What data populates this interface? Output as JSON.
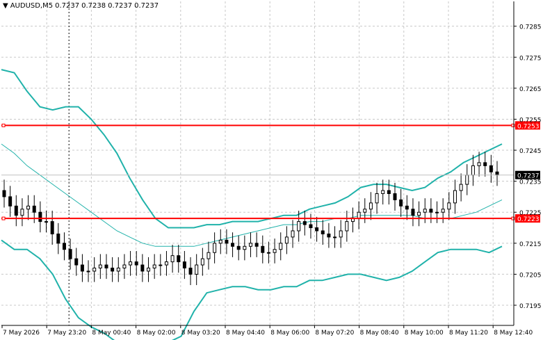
{
  "header": {
    "symbol": "AUDUSD,M5",
    "open": "0.7237",
    "high": "0.7238",
    "low": "0.7237",
    "close": "0.7237"
  },
  "colors": {
    "background": "#ffffff",
    "grid": "#c8c8c8",
    "band": "#20b2aa",
    "ma_line": "#20b2aa",
    "level_line": "#ff0000",
    "candle": "#000000",
    "price_line": "#c0c0c0"
  },
  "chart_data": {
    "type": "candlestick",
    "symbol": "AUDUSD",
    "timeframe": "M5",
    "grid": true,
    "ylim": [
      0.71885,
      0.7293
    ],
    "y_ticks": [
      "0.7285",
      "0.7275",
      "0.7265",
      "0.7255",
      "0.7245",
      "0.7235",
      "0.7225",
      "0.7215",
      "0.7205",
      "0.7195"
    ],
    "x_ticks": [
      "7 May 2026",
      "7 May 23:20",
      "8 May 00:40",
      "8 May 02:00",
      "8 May 03:20",
      "8 May 04:40",
      "8 May 06:00",
      "8 May 07:20",
      "8 May 08:40",
      "8 May 10:00",
      "8 May 11:20",
      "8 May 12:40"
    ],
    "last_price": "0.7237",
    "levels": [
      {
        "value": 0.7253,
        "label": "0.7253"
      },
      {
        "value": 0.7223,
        "label": "0.7223"
      }
    ],
    "closes": [
      0.723,
      0.7227,
      0.7224,
      0.7226,
      0.7227,
      0.7225,
      0.7222,
      0.7222,
      0.7218,
      0.7215,
      0.7213,
      0.721,
      0.7208,
      0.7206,
      0.7206,
      0.7207,
      0.7208,
      0.7207,
      0.7206,
      0.7207,
      0.7208,
      0.7209,
      0.7208,
      0.7206,
      0.7207,
      0.7208,
      0.7208,
      0.7209,
      0.7211,
      0.7209,
      0.7207,
      0.7205,
      0.7208,
      0.721,
      0.7212,
      0.7215,
      0.7216,
      0.7215,
      0.7214,
      0.7213,
      0.7214,
      0.7215,
      0.7214,
      0.7212,
      0.7212,
      0.7213,
      0.7215,
      0.7217,
      0.7219,
      0.7222,
      0.7221,
      0.722,
      0.7219,
      0.7218,
      0.7217,
      0.7217,
      0.7219,
      0.7222,
      0.7223,
      0.7225,
      0.7226,
      0.7228,
      0.7231,
      0.7232,
      0.7231,
      0.7229,
      0.7227,
      0.7226,
      0.7224,
      0.7225,
      0.7226,
      0.7225,
      0.7225,
      0.7226,
      0.7228,
      0.7232,
      0.7234,
      0.7237,
      0.724,
      0.7241,
      0.724,
      0.7238,
      0.7237
    ],
    "bollinger": {
      "period": 20,
      "upper": [
        0.7271,
        0.727,
        0.7264,
        0.7259,
        0.7258,
        0.7259,
        0.7259,
        0.7255,
        0.725,
        0.7244,
        0.7236,
        0.7229,
        0.7223,
        0.722,
        0.722,
        0.722,
        0.7221,
        0.7221,
        0.7222,
        0.7222,
        0.7222,
        0.7223,
        0.7224,
        0.7224,
        0.7226,
        0.7227,
        0.7228,
        0.723,
        0.7233,
        0.7234,
        0.7234,
        0.7233,
        0.7232,
        0.7233,
        0.7236,
        0.7238,
        0.7241,
        0.7243,
        0.7245,
        0.7247
      ],
      "middle": [
        0.7247,
        0.7244,
        0.724,
        0.7237,
        0.7234,
        0.7231,
        0.7228,
        0.7225,
        0.7222,
        0.7219,
        0.7217,
        0.7215,
        0.7214,
        0.7214,
        0.7214,
        0.7214,
        0.7215,
        0.7216,
        0.7217,
        0.7218,
        0.7219,
        0.722,
        0.7221,
        0.7221,
        0.7222,
        0.7222,
        0.7223,
        0.7223,
        0.7224,
        0.7224,
        0.7224,
        0.7224,
        0.7224,
        0.7223,
        0.7223,
        0.7223,
        0.7224,
        0.7225,
        0.7227,
        0.7229
      ],
      "lower": [
        0.7216,
        0.7213,
        0.7213,
        0.721,
        0.7205,
        0.7197,
        0.7191,
        0.7188,
        0.7186,
        0.7183,
        0.7181,
        0.7181,
        0.7182,
        0.7183,
        0.7185,
        0.7193,
        0.7199,
        0.72,
        0.7201,
        0.7201,
        0.72,
        0.72,
        0.7201,
        0.7201,
        0.7203,
        0.7203,
        0.7204,
        0.7205,
        0.7205,
        0.7204,
        0.7203,
        0.7204,
        0.7206,
        0.7209,
        0.7212,
        0.7213,
        0.7213,
        0.7213,
        0.7212,
        0.7214
      ]
    }
  }
}
